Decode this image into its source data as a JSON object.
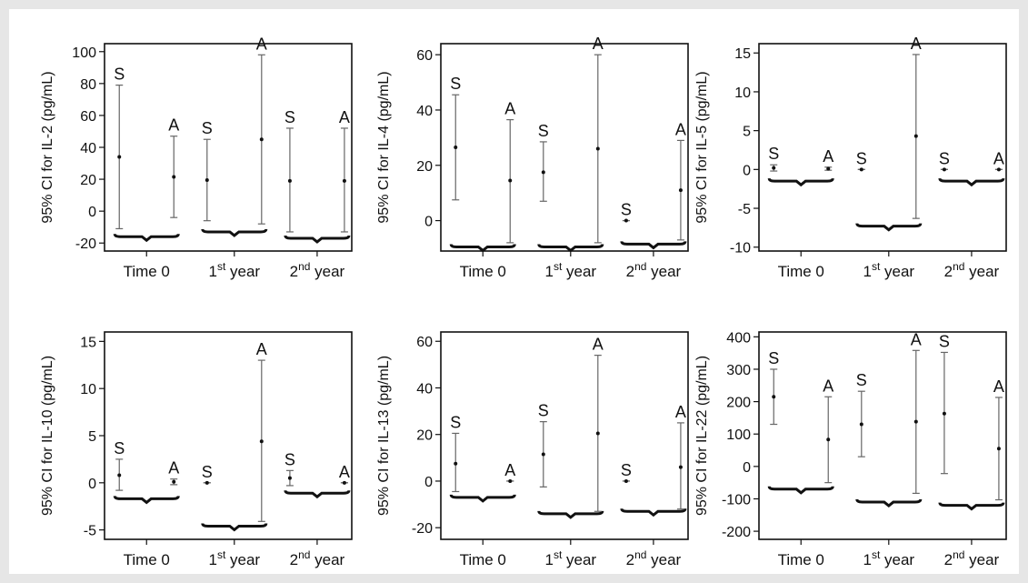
{
  "colors": {
    "background": "#e6e6e6",
    "panel": "#ffffff",
    "ink": "#111111",
    "whisker": "#666666"
  },
  "chart_data": [
    {
      "type": "errorbar",
      "ylabel": "95% CI for IL-2 (pg/mL)",
      "ylim": [
        -25,
        105
      ],
      "yticks": [
        -20,
        0,
        20,
        40,
        60,
        80,
        100
      ],
      "categories": [
        "Time 0",
        "1st year",
        "2nd year"
      ],
      "category_labels": [
        {
          "base": "Time 0",
          "sup": "",
          "tail": ""
        },
        {
          "base": "1",
          "sup": "st",
          "tail": " year"
        },
        {
          "base": "2",
          "sup": "nd",
          "tail": " year"
        }
      ],
      "series": [
        {
          "name": "S",
          "values": [
            {
              "mean": 34,
              "low": -11,
              "high": 79
            },
            {
              "mean": 19.5,
              "low": -6,
              "high": 45
            },
            {
              "mean": 19,
              "low": -13,
              "high": 52
            }
          ]
        },
        {
          "name": "A",
          "values": [
            {
              "mean": 21.5,
              "low": -4,
              "high": 47
            },
            {
              "mean": 45,
              "low": -8,
              "high": 98
            },
            {
              "mean": 19,
              "low": -13,
              "high": 52
            }
          ]
        }
      ],
      "braces": [
        -16,
        -13,
        -17
      ]
    },
    {
      "type": "errorbar",
      "ylabel": "95% CI for IL-4 (pg/mL)",
      "ylim": [
        -11,
        64
      ],
      "yticks": [
        0,
        20,
        40,
        60
      ],
      "categories": [
        "Time 0",
        "1st year",
        "2nd year"
      ],
      "category_labels": [
        {
          "base": "Time 0",
          "sup": "",
          "tail": ""
        },
        {
          "base": "1",
          "sup": "st",
          "tail": " year"
        },
        {
          "base": "2",
          "sup": "nd",
          "tail": " year"
        }
      ],
      "series": [
        {
          "name": "S",
          "values": [
            {
              "mean": 26.5,
              "low": 7.5,
              "high": 45.5
            },
            {
              "mean": 17.5,
              "low": 7,
              "high": 28.5
            },
            {
              "mean": 0,
              "low": 0,
              "high": 0
            }
          ]
        },
        {
          "name": "A",
          "values": [
            {
              "mean": 14.5,
              "low": -8,
              "high": 36.5
            },
            {
              "mean": 26,
              "low": -8,
              "high": 60
            },
            {
              "mean": 11,
              "low": -7,
              "high": 29
            }
          ]
        }
      ],
      "braces": [
        -9.5,
        -9.5,
        -8.5
      ]
    },
    {
      "type": "errorbar",
      "ylabel": "95% CI for IL-5 (pg/mL)",
      "ylim": [
        -10.5,
        16.2
      ],
      "yticks": [
        -10,
        -5,
        0,
        5,
        10,
        15
      ],
      "categories": [
        "Time 0",
        "1st year",
        "2nd year"
      ],
      "category_labels": [
        {
          "base": "Time 0",
          "sup": "",
          "tail": ""
        },
        {
          "base": "1",
          "sup": "st",
          "tail": " year"
        },
        {
          "base": "2",
          "sup": "nd",
          "tail": " year"
        }
      ],
      "series": [
        {
          "name": "S",
          "values": [
            {
              "mean": 0.2,
              "low": -0.2,
              "high": 0.6
            },
            {
              "mean": 0,
              "low": 0,
              "high": 0
            },
            {
              "mean": 0,
              "low": 0,
              "high": 0
            }
          ]
        },
        {
          "name": "A",
          "values": [
            {
              "mean": 0.1,
              "low": -0.1,
              "high": 0.3
            },
            {
              "mean": 4.3,
              "low": -6.3,
              "high": 14.8
            },
            {
              "mean": 0,
              "low": 0,
              "high": 0
            }
          ]
        }
      ],
      "braces": [
        -1.5,
        -7.3,
        -1.5
      ]
    },
    {
      "type": "errorbar",
      "ylabel": "95% CI for IL-10 (pg/mL)",
      "ylim": [
        -6,
        16
      ],
      "yticks": [
        -5,
        0,
        5,
        10,
        15
      ],
      "categories": [
        "Time 0",
        "1st year",
        "2nd year"
      ],
      "category_labels": [
        {
          "base": "Time 0",
          "sup": "",
          "tail": ""
        },
        {
          "base": "1",
          "sup": "st",
          "tail": " year"
        },
        {
          "base": "2",
          "sup": "nd",
          "tail": " year"
        }
      ],
      "series": [
        {
          "name": "S",
          "values": [
            {
              "mean": 0.8,
              "low": -0.8,
              "high": 2.5
            },
            {
              "mean": 0,
              "low": 0,
              "high": 0
            },
            {
              "mean": 0.5,
              "low": -0.3,
              "high": 1.3
            }
          ]
        },
        {
          "name": "A",
          "values": [
            {
              "mean": 0.1,
              "low": -0.2,
              "high": 0.4
            },
            {
              "mean": 4.4,
              "low": -4.1,
              "high": 13
            },
            {
              "mean": 0,
              "low": 0,
              "high": 0
            }
          ]
        }
      ],
      "braces": [
        -1.7,
        -4.6,
        -1.1
      ]
    },
    {
      "type": "errorbar",
      "ylabel": "95% CI for IL-13 (pg/mL)",
      "ylim": [
        -25,
        64
      ],
      "yticks": [
        -20,
        0,
        20,
        40,
        60
      ],
      "categories": [
        "Time 0",
        "1st year",
        "2nd year"
      ],
      "category_labels": [
        {
          "base": "Time 0",
          "sup": "",
          "tail": ""
        },
        {
          "base": "1",
          "sup": "st",
          "tail": " year"
        },
        {
          "base": "2",
          "sup": "nd",
          "tail": " year"
        }
      ],
      "series": [
        {
          "name": "S",
          "values": [
            {
              "mean": 7.5,
              "low": -4.5,
              "high": 20.5
            },
            {
              "mean": 11.5,
              "low": -2.5,
              "high": 25.5
            },
            {
              "mean": 0,
              "low": 0,
              "high": 0
            }
          ]
        },
        {
          "name": "A",
          "values": [
            {
              "mean": 0,
              "low": 0,
              "high": 0
            },
            {
              "mean": 20.5,
              "low": -13,
              "high": 54
            },
            {
              "mean": 6,
              "low": -12,
              "high": 25
            }
          ]
        }
      ],
      "braces": [
        -7,
        -14,
        -13
      ]
    },
    {
      "type": "errorbar",
      "ylabel": "95% CI for IL-22 (pg/mL)",
      "ylim": [
        -225,
        415
      ],
      "yticks": [
        -200,
        -100,
        0,
        100,
        200,
        300,
        400
      ],
      "categories": [
        "Time 0",
        "1st year",
        "2nd year"
      ],
      "category_labels": [
        {
          "base": "Time 0",
          "sup": "",
          "tail": ""
        },
        {
          "base": "1",
          "sup": "st",
          "tail": " year"
        },
        {
          "base": "2",
          "sup": "nd",
          "tail": " year"
        }
      ],
      "series": [
        {
          "name": "S",
          "values": [
            {
              "mean": 215,
              "low": 130,
              "high": 300
            },
            {
              "mean": 130,
              "low": 30,
              "high": 232
            },
            {
              "mean": 163,
              "low": -22,
              "high": 352
            }
          ]
        },
        {
          "name": "A",
          "values": [
            {
              "mean": 83,
              "low": -50,
              "high": 215
            },
            {
              "mean": 138,
              "low": -83,
              "high": 358
            },
            {
              "mean": 55,
              "low": -103,
              "high": 213
            }
          ]
        }
      ],
      "braces": [
        -70,
        -110,
        -120
      ]
    }
  ]
}
